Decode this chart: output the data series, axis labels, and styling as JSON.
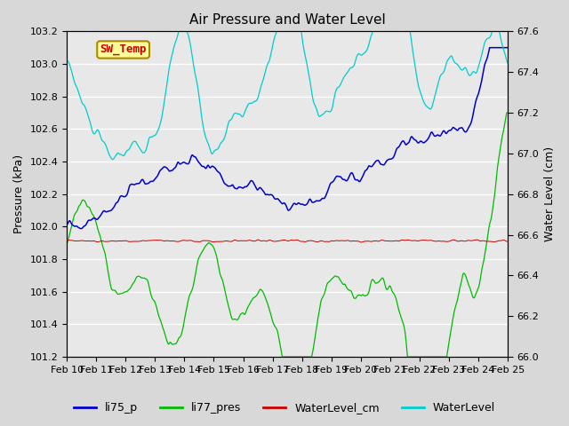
{
  "title": "Air Pressure and Water Level",
  "ylabel_left": "Pressure (kPa)",
  "ylabel_right": "Water Level (cm)",
  "ylim_left": [
    101.2,
    103.2
  ],
  "ylim_right": [
    66.0,
    67.6
  ],
  "yticks_left": [
    101.2,
    101.4,
    101.6,
    101.8,
    102.0,
    102.2,
    102.4,
    102.6,
    102.8,
    103.0,
    103.2
  ],
  "yticks_right": [
    66.0,
    66.2,
    66.4,
    66.6,
    66.8,
    67.0,
    67.2,
    67.4,
    67.6
  ],
  "xtick_labels": [
    "Feb 10",
    "Feb 11",
    "Feb 12",
    "Feb 13",
    "Feb 14",
    "Feb 15",
    "Feb 16",
    "Feb 17",
    "Feb 18",
    "Feb 19",
    "Feb 20",
    "Feb 21",
    "Feb 22",
    "Feb 23",
    "Feb 24",
    "Feb 25"
  ],
  "legend_labels": [
    "li75_p",
    "li77_pres",
    "WaterLevel_cm",
    "WaterLevel"
  ],
  "legend_colors": [
    "#0000cc",
    "#00bb00",
    "#cc0000",
    "#00cccc"
  ],
  "sw_temp_box_color": "#ffff99",
  "sw_temp_text_color": "#cc0000",
  "sw_temp_border_color": "#aa8800",
  "background_color": "#d8d8d8",
  "plot_bg_color": "#e8e8e8",
  "grid_color": "#ffffff",
  "figsize": [
    6.4,
    4.8
  ],
  "dpi": 100
}
